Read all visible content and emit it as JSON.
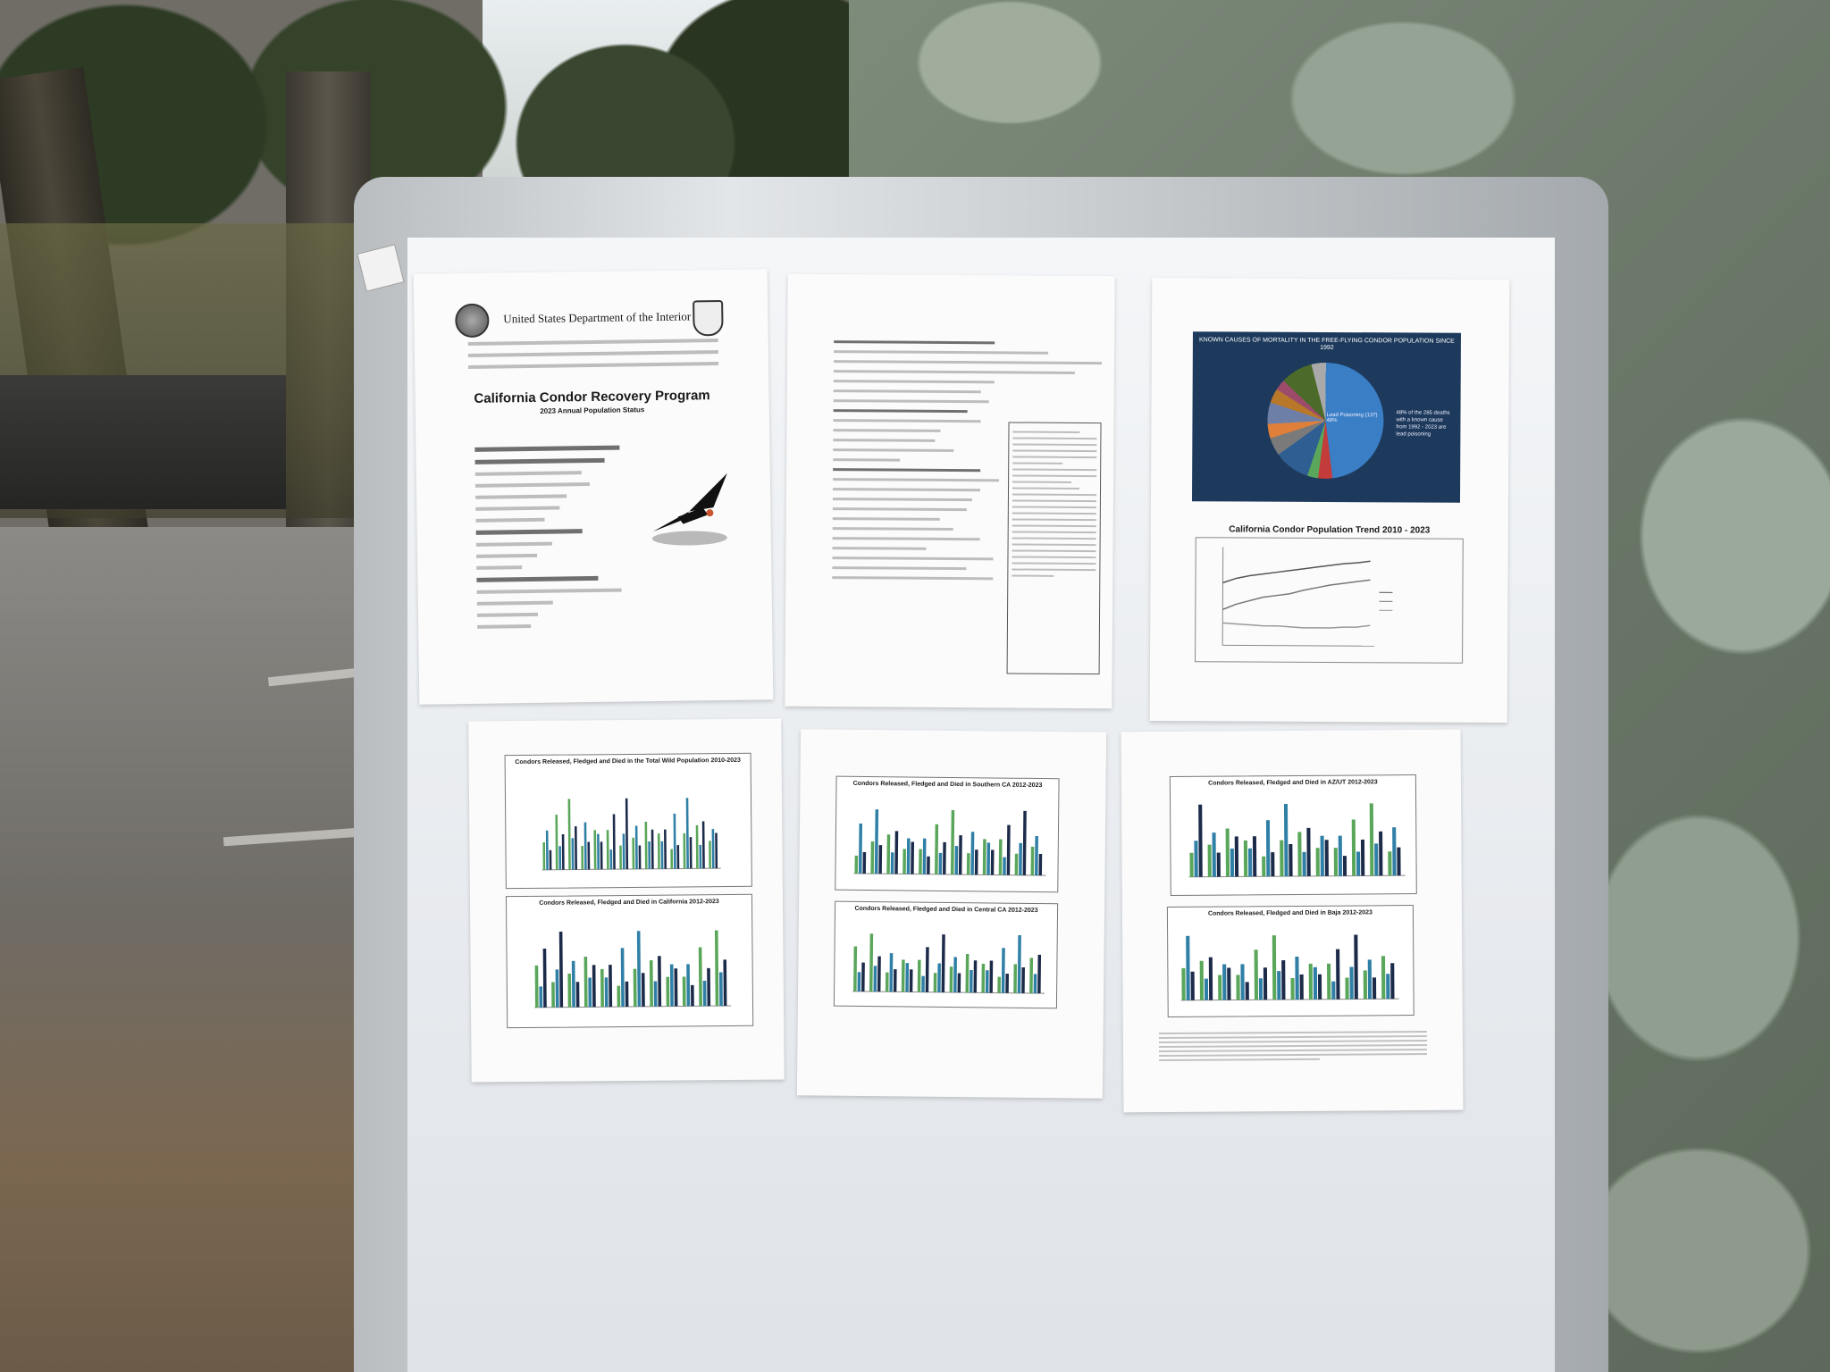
{
  "sheet1": {
    "agency": "United States Department of the Interior",
    "title": "California Condor Recovery Program",
    "subtitle": "2023 Annual Population Status"
  },
  "sheet3": {
    "pie_title": "KNOWN CAUSES OF MORTALITY IN THE FREE-FLYING CONDOR POPULATION SINCE 1992",
    "pie_center_label": "Lead Poisoning (137) 48%",
    "pie_side_note": "48% of the 285 deaths with a known cause from 1992 - 2023 are lead poisoning",
    "trend_title": "California Condor Population Trend 2010 - 2023"
  },
  "sheet4": {
    "chart_top_title": "Condors Released, Fledged and Died in the Total Wild Population 2010-2023",
    "chart_bottom_title": "Condors Released, Fledged and Died in California 2012-2023"
  },
  "sheet5": {
    "chart_top_title": "Condors Released, Fledged and Died in Southern CA 2012-2023",
    "chart_bottom_title": "Condors Released, Fledged and Died in Central CA 2012-2023"
  },
  "sheet6": {
    "chart_top_title": "Condors Released, Fledged and Died in AZ/UT 2012-2023",
    "chart_bottom_title": "Condors Released, Fledged and Died in Baja 2012-2023"
  },
  "colors": {
    "released": "#5aa65a",
    "fledged": "#2f7fa6",
    "died": "#1d2b4a"
  }
}
